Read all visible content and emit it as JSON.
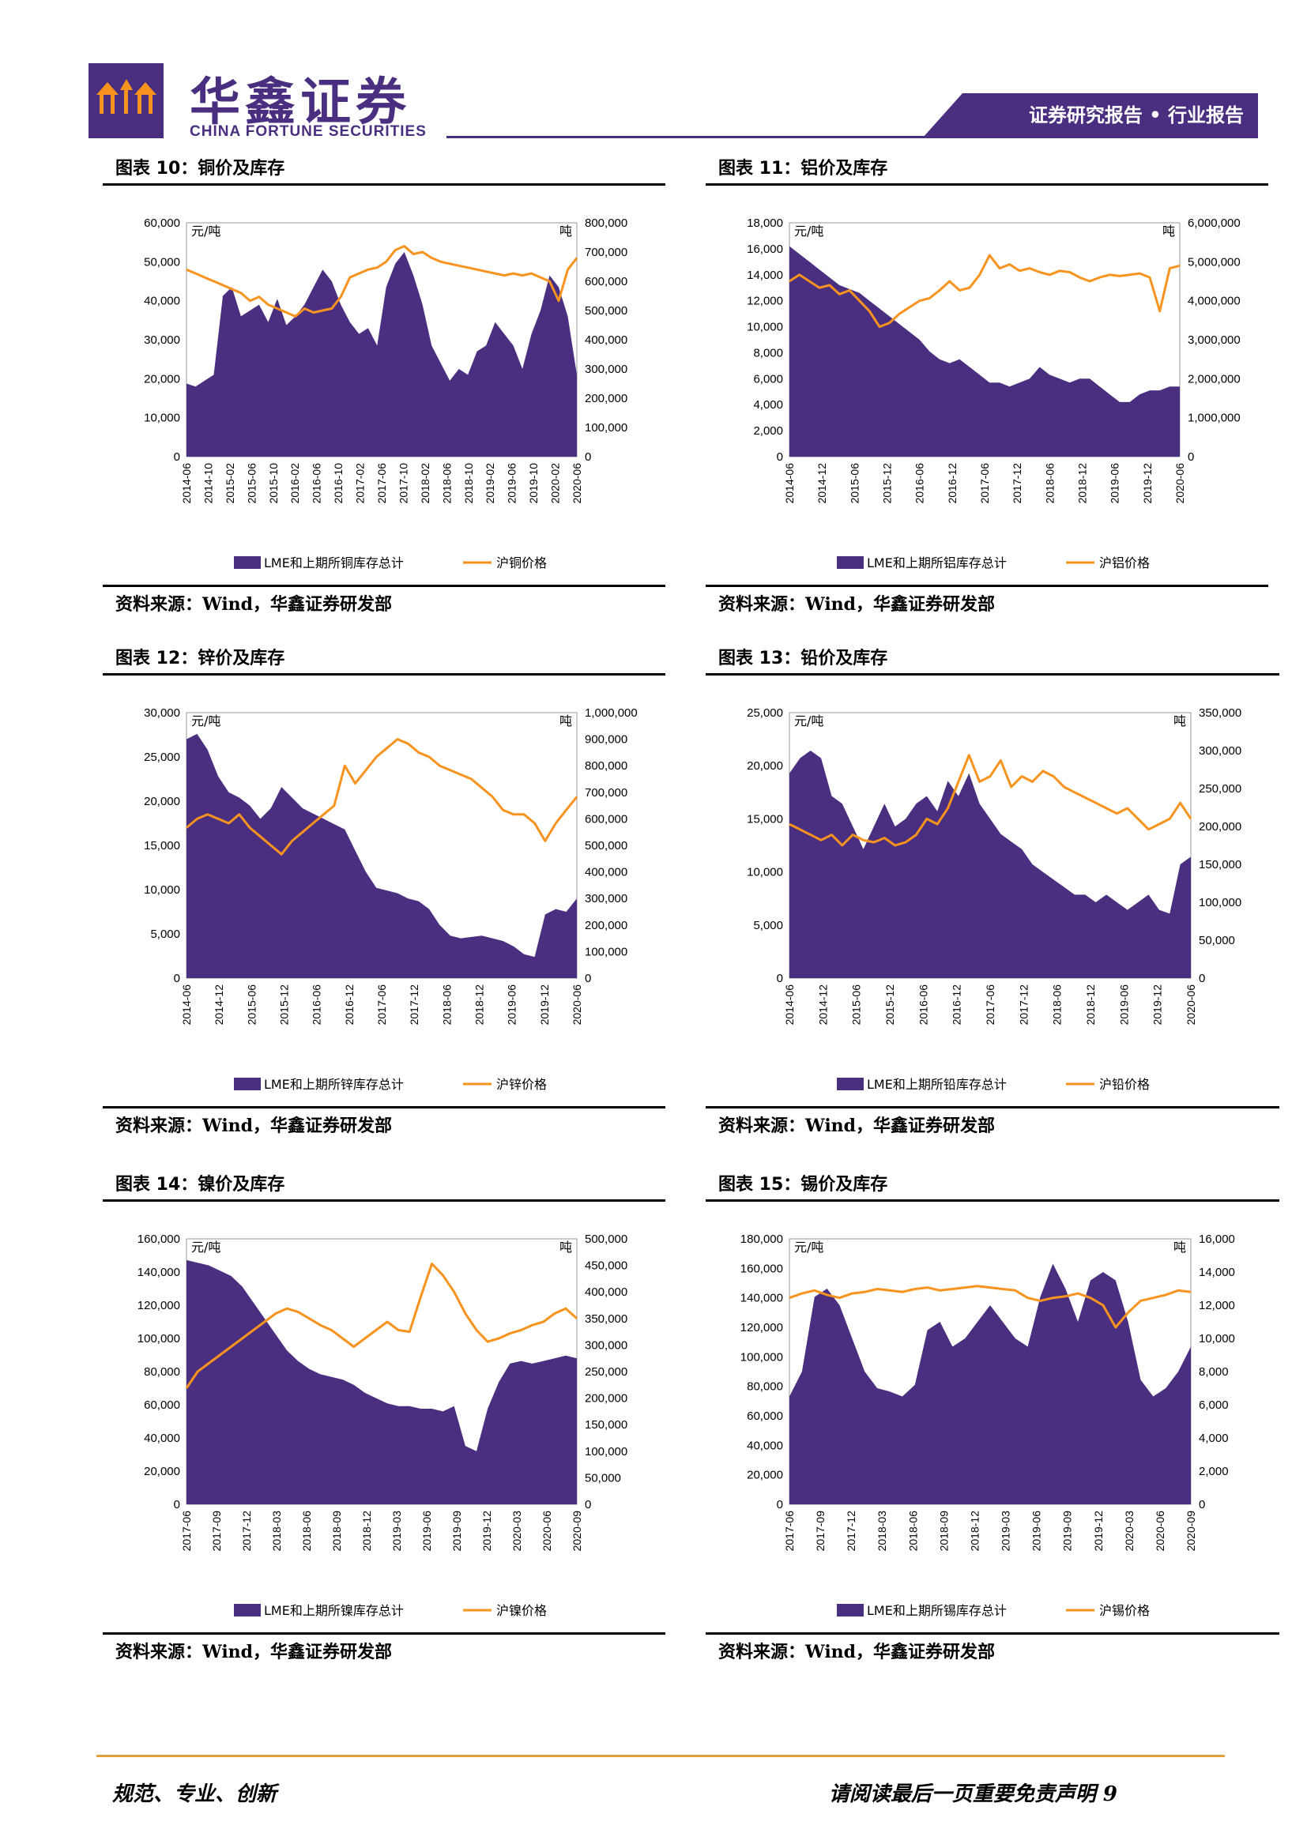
{
  "header": {
    "brand_cn": "华鑫证券",
    "brand_en": "CHINA FORTUNE SECURITIES",
    "report_tag": "证券研究报告 • 行业报告"
  },
  "colors": {
    "brand": "#4a2f80",
    "bars": "#4a2f80",
    "line": "#f7931e",
    "footer_rule": "#e0a13a"
  },
  "panels": [
    {
      "title": "图表 10：铜价及库存",
      "source": "资料来源：Wind，华鑫证券研发部",
      "left_unit": "元/吨",
      "right_unit": "吨",
      "left_ticks": [
        "0",
        "10,000",
        "20,000",
        "30,000",
        "40,000",
        "50,000",
        "60,000"
      ],
      "right_ticks": [
        "0",
        "100,000",
        "200,000",
        "300,000",
        "400,000",
        "500,000",
        "600,000",
        "700,000",
        "800,000"
      ],
      "x_labels": [
        "2014-06",
        "2014-10",
        "2015-02",
        "2015-06",
        "2015-10",
        "2016-02",
        "2016-06",
        "2016-10",
        "2017-02",
        "2017-06",
        "2017-10",
        "2018-02",
        "2018-06",
        "2018-10",
        "2019-02",
        "2019-06",
        "2019-10",
        "2020-02",
        "2020-06"
      ],
      "legend_bar": "LME和上期所铜库存总计",
      "legend_line": "沪铜价格"
    },
    {
      "title": "图表 11：铝价及库存",
      "source": "资料来源：Wind，华鑫证券研发部",
      "left_unit": "元/吨",
      "right_unit": "吨",
      "left_ticks": [
        "0",
        "2,000",
        "4,000",
        "6,000",
        "8,000",
        "10,000",
        "12,000",
        "14,000",
        "16,000",
        "18,000"
      ],
      "right_ticks": [
        "0",
        "1,000,000",
        "2,000,000",
        "3,000,000",
        "4,000,000",
        "5,000,000",
        "6,000,000"
      ],
      "x_labels": [
        "2014-06",
        "2014-12",
        "2015-06",
        "2015-12",
        "2016-06",
        "2016-12",
        "2017-06",
        "2017-12",
        "2018-06",
        "2018-12",
        "2019-06",
        "2019-12",
        "2020-06"
      ],
      "legend_bar": "LME和上期所铝库存总计",
      "legend_line": "沪铝价格"
    },
    {
      "title": "图表 12：锌价及库存",
      "source": "资料来源：Wind，华鑫证券研发部",
      "left_unit": "元/吨",
      "right_unit": "吨",
      "left_ticks": [
        "0",
        "5,000",
        "10,000",
        "15,000",
        "20,000",
        "25,000",
        "30,000"
      ],
      "right_ticks": [
        "0",
        "100,000",
        "200,000",
        "300,000",
        "400,000",
        "500,000",
        "600,000",
        "700,000",
        "800,000",
        "900,000",
        "1,000,000"
      ],
      "x_labels": [
        "2014-06",
        "2014-12",
        "2015-06",
        "2015-12",
        "2016-06",
        "2016-12",
        "2017-06",
        "2017-12",
        "2018-06",
        "2018-12",
        "2019-06",
        "2019-12",
        "2020-06"
      ],
      "legend_bar": "LME和上期所锌库存总计",
      "legend_line": "沪锌价格"
    },
    {
      "title": "图表 13：铅价及库存",
      "source": "资料来源：Wind，华鑫证券研发部",
      "left_unit": "元/吨",
      "right_unit": "吨",
      "left_ticks": [
        "0",
        "5,000",
        "10,000",
        "15,000",
        "20,000",
        "25,000"
      ],
      "right_ticks": [
        "0",
        "50,000",
        "100,000",
        "150,000",
        "200,000",
        "250,000",
        "300,000",
        "350,000"
      ],
      "x_labels": [
        "2014-06",
        "2014-12",
        "2015-06",
        "2015-12",
        "2016-06",
        "2016-12",
        "2017-06",
        "2017-12",
        "2018-06",
        "2018-12",
        "2019-06",
        "2019-12",
        "2020-06"
      ],
      "legend_bar": "LME和上期所铅库存总计",
      "legend_line": "沪铅价格"
    },
    {
      "title": "图表 14：镍价及库存",
      "source": "资料来源：Wind，华鑫证券研发部",
      "left_unit": "元/吨",
      "right_unit": "吨",
      "left_ticks": [
        "0",
        "20,000",
        "40,000",
        "60,000",
        "80,000",
        "100,000",
        "120,000",
        "140,000",
        "160,000"
      ],
      "right_ticks": [
        "0",
        "50,000",
        "100,000",
        "150,000",
        "200,000",
        "250,000",
        "300,000",
        "350,000",
        "400,000",
        "450,000",
        "500,000"
      ],
      "x_labels": [
        "2017-06",
        "2017-09",
        "2017-12",
        "2018-03",
        "2018-06",
        "2018-09",
        "2018-12",
        "2019-03",
        "2019-06",
        "2019-09",
        "2019-12",
        "2020-03",
        "2020-06",
        "2020-09"
      ],
      "legend_bar": "LME和上期所镍库存总计",
      "legend_line": "沪镍价格"
    },
    {
      "title": "图表 15：锡价及库存",
      "source": "资料来源：Wind，华鑫证券研发部",
      "left_unit": "元/吨",
      "right_unit": "吨",
      "left_ticks": [
        "0",
        "20,000",
        "40,000",
        "60,000",
        "80,000",
        "100,000",
        "120,000",
        "140,000",
        "160,000",
        "180,000"
      ],
      "right_ticks": [
        "0",
        "2,000",
        "4,000",
        "6,000",
        "8,000",
        "10,000",
        "12,000",
        "14,000",
        "16,000"
      ],
      "x_labels": [
        "2017-06",
        "2017-09",
        "2017-12",
        "2018-03",
        "2018-06",
        "2018-09",
        "2018-12",
        "2019-03",
        "2019-06",
        "2019-09",
        "2019-12",
        "2020-03",
        "2020-06",
        "2020-09"
      ],
      "legend_bar": "LME和上期所锡库存总计",
      "legend_line": "沪锡价格"
    }
  ],
  "chart_data": [
    {
      "type": "area",
      "title": "",
      "left_axis": "元/吨",
      "right_axis": "吨",
      "ylim_left": [
        0,
        60000
      ],
      "ylim_right": [
        0,
        800000
      ],
      "series": [
        {
          "name": "LME和上期所铜库存总计",
          "axis": "right",
          "values": [
            250000,
            240000,
            260000,
            280000,
            550000,
            580000,
            480000,
            500000,
            520000,
            460000,
            540000,
            450000,
            480000,
            520000,
            580000,
            640000,
            600000,
            520000,
            460000,
            420000,
            440000,
            380000,
            580000,
            660000,
            700000,
            620000,
            520000,
            380000,
            320000,
            260000,
            300000,
            280000,
            360000,
            380000,
            460000,
            420000,
            380000,
            300000,
            420000,
            500000,
            620000,
            580000,
            480000,
            280000
          ]
        },
        {
          "name": "沪铜价格",
          "axis": "left",
          "values": [
            48000,
            47000,
            46000,
            45000,
            44000,
            43000,
            42000,
            40000,
            41000,
            39000,
            38000,
            37000,
            36000,
            38000,
            37000,
            37500,
            38000,
            41000,
            46000,
            47000,
            48000,
            48500,
            50000,
            53000,
            54000,
            52000,
            52500,
            51000,
            50000,
            49500,
            49000,
            48500,
            48000,
            47500,
            47000,
            46500,
            47000,
            46500,
            47000,
            46000,
            45000,
            40000,
            48000,
            51000
          ]
        }
      ]
    },
    {
      "type": "area",
      "title": "",
      "left_axis": "元/吨",
      "right_axis": "吨",
      "ylim_left": [
        0,
        18000
      ],
      "ylim_right": [
        0,
        6000000
      ],
      "series": [
        {
          "name": "LME和上期所铝库存总计",
          "axis": "right",
          "values": [
            5400000,
            5200000,
            5000000,
            4800000,
            4600000,
            4400000,
            4300000,
            4200000,
            4000000,
            3800000,
            3600000,
            3400000,
            3200000,
            3000000,
            2700000,
            2500000,
            2400000,
            2500000,
            2300000,
            2100000,
            1900000,
            1900000,
            1800000,
            1900000,
            2000000,
            2300000,
            2100000,
            2000000,
            1900000,
            2000000,
            2000000,
            1800000,
            1600000,
            1400000,
            1400000,
            1600000,
            1700000,
            1700000,
            1800000,
            1800000
          ]
        },
        {
          "name": "沪铝价格",
          "axis": "left",
          "values": [
            13500,
            14000,
            13500,
            13000,
            13200,
            12500,
            12800,
            12000,
            11200,
            10000,
            10300,
            11000,
            11500,
            12000,
            12200,
            12800,
            13500,
            12800,
            13000,
            14000,
            15500,
            14500,
            14800,
            14300,
            14500,
            14200,
            14000,
            14300,
            14200,
            13800,
            13500,
            13800,
            14000,
            13900,
            14000,
            14100,
            13800,
            11200,
            14500,
            14700
          ]
        }
      ]
    },
    {
      "type": "area",
      "title": "",
      "left_axis": "元/吨",
      "right_axis": "吨",
      "ylim_left": [
        0,
        30000
      ],
      "ylim_right": [
        0,
        1000000
      ],
      "series": [
        {
          "name": "LME和上期所锌库存总计",
          "axis": "right",
          "values": [
            900000,
            920000,
            860000,
            760000,
            700000,
            680000,
            650000,
            600000,
            640000,
            720000,
            680000,
            640000,
            620000,
            600000,
            580000,
            560000,
            480000,
            400000,
            340000,
            330000,
            320000,
            300000,
            290000,
            260000,
            200000,
            160000,
            150000,
            155000,
            160000,
            150000,
            140000,
            120000,
            90000,
            80000,
            240000,
            260000,
            250000,
            300000
          ]
        },
        {
          "name": "沪锌价格",
          "axis": "left",
          "values": [
            17000,
            18000,
            18500,
            18000,
            17500,
            18500,
            17000,
            16000,
            15000,
            14000,
            15500,
            16500,
            17500,
            18500,
            19500,
            24000,
            22000,
            23500,
            25000,
            26000,
            27000,
            26500,
            25500,
            25000,
            24000,
            23500,
            23000,
            22500,
            21500,
            20500,
            19000,
            18500,
            18500,
            17500,
            15500,
            17500,
            19000,
            20500
          ]
        }
      ]
    },
    {
      "type": "area",
      "title": "",
      "left_axis": "元/吨",
      "right_axis": "吨",
      "ylim_left": [
        0,
        25000
      ],
      "ylim_right": [
        0,
        350000
      ],
      "series": [
        {
          "name": "LME和上期所铅库存总计",
          "axis": "right",
          "values": [
            270000,
            290000,
            300000,
            290000,
            240000,
            230000,
            200000,
            170000,
            200000,
            230000,
            200000,
            210000,
            230000,
            240000,
            220000,
            260000,
            240000,
            270000,
            230000,
            210000,
            190000,
            180000,
            170000,
            150000,
            140000,
            130000,
            120000,
            110000,
            110000,
            100000,
            110000,
            100000,
            90000,
            100000,
            110000,
            90000,
            85000,
            150000,
            160000
          ]
        },
        {
          "name": "沪铅价格",
          "axis": "left",
          "values": [
            14500,
            14000,
            13500,
            13000,
            13500,
            12500,
            13500,
            13000,
            12800,
            13200,
            12500,
            12800,
            13500,
            15000,
            14500,
            16000,
            18500,
            21000,
            18500,
            19000,
            20500,
            18000,
            19000,
            18500,
            19500,
            19000,
            18000,
            17500,
            17000,
            16500,
            16000,
            15500,
            16000,
            15000,
            14000,
            14500,
            15000,
            16500,
            15000
          ]
        }
      ]
    },
    {
      "type": "area",
      "title": "",
      "left_axis": "元/吨",
      "right_axis": "吨",
      "ylim_left": [
        0,
        160000
      ],
      "ylim_right": [
        0,
        500000
      ],
      "series": [
        {
          "name": "LME和上期所镍库存总计",
          "axis": "right",
          "values": [
            460000,
            455000,
            450000,
            440000,
            430000,
            410000,
            380000,
            350000,
            320000,
            290000,
            270000,
            255000,
            245000,
            240000,
            235000,
            225000,
            210000,
            200000,
            190000,
            185000,
            185000,
            180000,
            180000,
            175000,
            185000,
            110000,
            100000,
            180000,
            230000,
            265000,
            270000,
            265000,
            270000,
            275000,
            280000,
            275000
          ]
        },
        {
          "name": "沪镍价格",
          "axis": "left",
          "values": [
            70000,
            80000,
            85000,
            90000,
            95000,
            100000,
            105000,
            110000,
            115000,
            118000,
            116000,
            112000,
            108000,
            105000,
            100000,
            95000,
            100000,
            105000,
            110000,
            105000,
            104000,
            125000,
            145000,
            138000,
            128000,
            115000,
            105000,
            98000,
            100000,
            103000,
            105000,
            108000,
            110000,
            115000,
            118000,
            112000
          ]
        }
      ]
    },
    {
      "type": "area",
      "title": "",
      "left_axis": "元/吨",
      "right_axis": "吨",
      "ylim_left": [
        0,
        180000
      ],
      "ylim_right": [
        0,
        16000
      ],
      "series": [
        {
          "name": "LME和上期所锡库存总计",
          "axis": "right",
          "values": [
            6500,
            8000,
            12500,
            13000,
            12000,
            10000,
            8000,
            7000,
            6800,
            6500,
            7200,
            10500,
            11000,
            9500,
            10000,
            11000,
            12000,
            11000,
            10000,
            9500,
            12500,
            14500,
            13000,
            11000,
            13500,
            14000,
            13500,
            11000,
            7500,
            6500,
            7000,
            8000,
            9500
          ]
        },
        {
          "name": "沪锡价格",
          "axis": "left",
          "values": [
            140000,
            143000,
            145000,
            142000,
            140000,
            143000,
            144000,
            146000,
            145000,
            144000,
            146000,
            147000,
            145000,
            146000,
            147000,
            148000,
            147000,
            146000,
            145000,
            140000,
            138000,
            140000,
            141000,
            143000,
            140000,
            135000,
            120000,
            130000,
            138000,
            140000,
            142000,
            145000,
            144000
          ]
        }
      ]
    }
  ],
  "footer": {
    "left": "规范、专业、创新",
    "right": "请阅读最后一页重要免责声明 9"
  }
}
